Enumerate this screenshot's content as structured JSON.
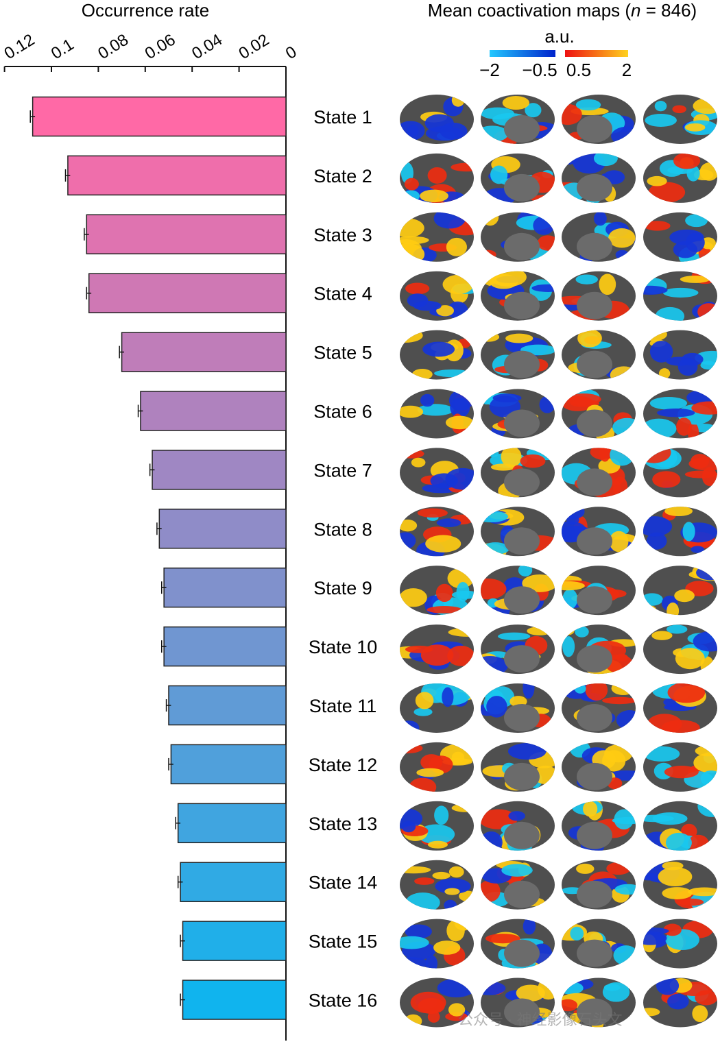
{
  "chart_data": {
    "type": "bar",
    "orientation": "horizontal",
    "title": "Occurrence rate",
    "categories": [
      "State 1",
      "State 2",
      "State 3",
      "State 4",
      "State 5",
      "State 6",
      "State 7",
      "State 8",
      "State 9",
      "State 10",
      "State 11",
      "State 12",
      "State 13",
      "State 14",
      "State 15",
      "State 16"
    ],
    "values": [
      0.108,
      0.093,
      0.085,
      0.084,
      0.07,
      0.062,
      0.057,
      0.054,
      0.052,
      0.052,
      0.05,
      0.049,
      0.046,
      0.045,
      0.044,
      0.044
    ],
    "error": [
      0.001,
      0.001,
      0.001,
      0.001,
      0.001,
      0.001,
      0.001,
      0.001,
      0.001,
      0.001,
      0.001,
      0.001,
      0.001,
      0.001,
      0.001,
      0.001
    ],
    "xlim": [
      0.12,
      0
    ],
    "xticks": [
      0.12,
      0.1,
      0.08,
      0.06,
      0.04,
      0.02,
      0
    ],
    "xtick_labels": [
      "0.12",
      "0.1",
      "0.08",
      "0.06",
      "0.04",
      "0.02",
      "0"
    ],
    "x_axis_position": "top",
    "axis_reversed": true,
    "bar_color_start": "#ff69a6",
    "bar_color_end": "#10b4ee"
  },
  "maps_panel": {
    "title_prefix": "Mean coactivation maps (",
    "title_italic": "n",
    "title_suffix": " = 846)",
    "colorbar_unit": "a.u.",
    "colorbar_labels": [
      "−2",
      "−0.5",
      "0.5",
      "2"
    ],
    "colorbar_negative": [
      "#22c8ff",
      "#0022cc"
    ],
    "colorbar_positive": [
      "#ee1111",
      "#ffd21f"
    ],
    "views_per_state": 4,
    "surface_color": "#4f4f4f",
    "map_colors": [
      "#19c8ef",
      "#1535d8",
      "#ee2d10",
      "#ffcc12"
    ]
  },
  "watermark": "公众号 · 神经影像石头文"
}
